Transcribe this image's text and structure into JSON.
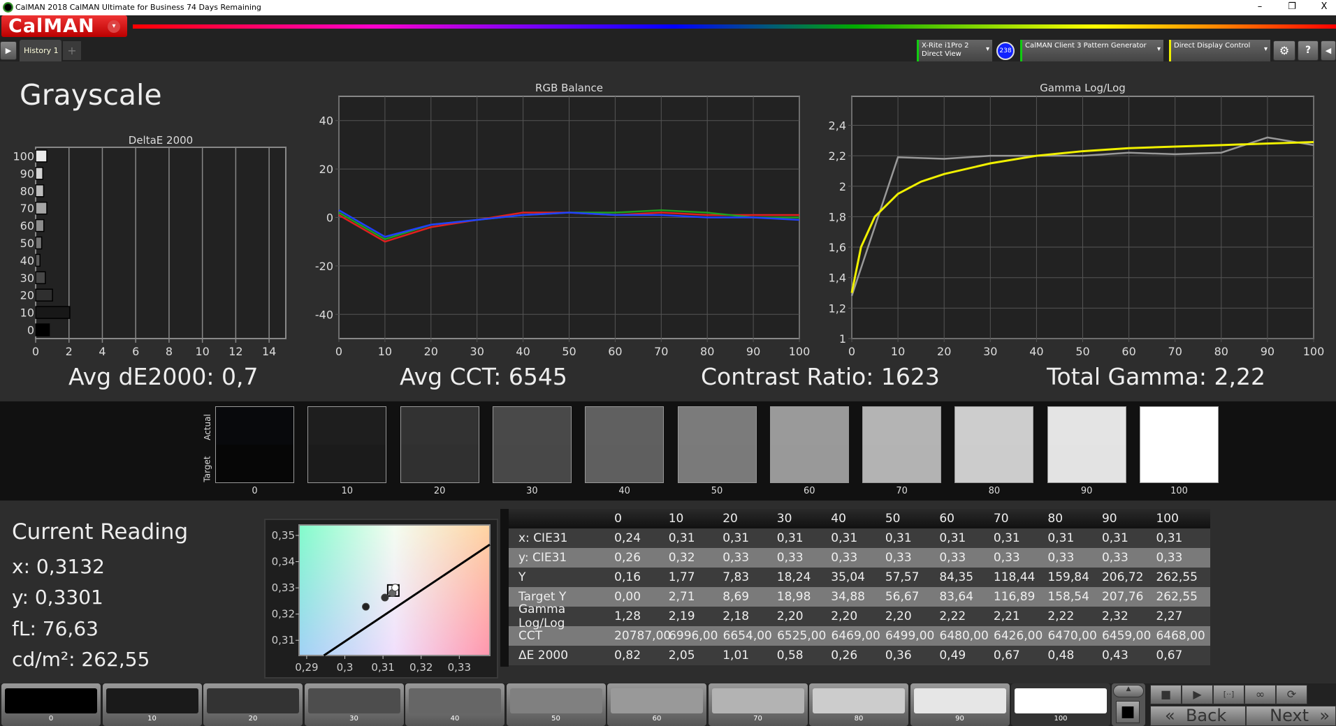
{
  "window": {
    "title": "CalMAN 2018 CalMAN Ultimate for Business 74 Days Remaining",
    "minimize": "–",
    "restore": "❐",
    "close": "X"
  },
  "app": {
    "logo": "CalMAN",
    "logo_caret": "▾"
  },
  "tabs": {
    "play": "▶",
    "history": "History 1",
    "add": "+"
  },
  "devices": {
    "meter_line1": "X-Rite i1Pro 2",
    "meter_line2": "Direct View",
    "meter_badge": "238",
    "pattern_gen": "CalMAN Client 3 Pattern Generator",
    "display_control": "Direct Display Control",
    "caret": "▾",
    "settings": "⚙",
    "help": "?",
    "collapse": "◀"
  },
  "page": {
    "title": "Grayscale"
  },
  "stats": {
    "avg_de": "Avg dE2000: 0,7",
    "avg_cct": "Avg CCT: 6545",
    "contrast": "Contrast Ratio: 1623",
    "gamma": "Total Gamma: 2,22"
  },
  "swatches": {
    "actual_label": "Actual",
    "target_label": "Target",
    "items": [
      {
        "label": "0",
        "actual": "#08090c",
        "target": "#060606"
      },
      {
        "label": "10",
        "actual": "#1e1e1e",
        "target": "#1b1b1b"
      },
      {
        "label": "20",
        "actual": "#323232",
        "target": "#303030"
      },
      {
        "label": "30",
        "actual": "#494949",
        "target": "#484848"
      },
      {
        "label": "40",
        "actual": "#606060",
        "target": "#5f5f5f"
      },
      {
        "label": "50",
        "actual": "#7b7b7b",
        "target": "#7a7a7a"
      },
      {
        "label": "60",
        "actual": "#9a9a9a",
        "target": "#999999"
      },
      {
        "label": "70",
        "actual": "#b4b4b4",
        "target": "#b3b3b3"
      },
      {
        "label": "80",
        "actual": "#cdcdcd",
        "target": "#cccccc"
      },
      {
        "label": "90",
        "actual": "#e4e4e4",
        "target": "#e3e3e3"
      },
      {
        "label": "100",
        "actual": "#ffffff",
        "target": "#ffffff"
      }
    ]
  },
  "current_reading": {
    "title": "Current Reading",
    "x": "x: 0,3132",
    "y": "y: 0,3301",
    "fl": "fL: 76,63",
    "cdm2": "cd/m²: 262,55"
  },
  "table": {
    "columns": [
      "",
      "0",
      "10",
      "20",
      "30",
      "40",
      "50",
      "60",
      "70",
      "80",
      "90",
      "100"
    ],
    "rows": [
      [
        "x: CIE31",
        "0,24",
        "0,31",
        "0,31",
        "0,31",
        "0,31",
        "0,31",
        "0,31",
        "0,31",
        "0,31",
        "0,31",
        "0,31"
      ],
      [
        "y: CIE31",
        "0,26",
        "0,32",
        "0,33",
        "0,33",
        "0,33",
        "0,33",
        "0,33",
        "0,33",
        "0,33",
        "0,33",
        "0,33"
      ],
      [
        "Y",
        "0,16",
        "1,77",
        "7,83",
        "18,24",
        "35,04",
        "57,57",
        "84,35",
        "118,44",
        "159,84",
        "206,72",
        "262,55"
      ],
      [
        "Target Y",
        "0,00",
        "2,71",
        "8,69",
        "18,98",
        "34,88",
        "56,67",
        "83,64",
        "116,89",
        "158,54",
        "207,76",
        "262,55"
      ],
      [
        "Gamma Log/Log",
        "1,28",
        "2,19",
        "2,18",
        "2,20",
        "2,20",
        "2,20",
        "2,22",
        "2,21",
        "2,22",
        "2,32",
        "2,27"
      ],
      [
        "CCT",
        "20787,00",
        "6996,00",
        "6654,00",
        "6525,00",
        "6469,00",
        "6499,00",
        "6480,00",
        "6426,00",
        "6470,00",
        "6459,00",
        "6468,00"
      ],
      [
        "ΔE 2000",
        "0,82",
        "2,05",
        "1,01",
        "0,58",
        "0,26",
        "0,36",
        "0,49",
        "0,67",
        "0,48",
        "0,43",
        "0,67"
      ]
    ]
  },
  "bottom": {
    "swatches": [
      {
        "label": "0",
        "color": "#000000"
      },
      {
        "label": "10",
        "color": "#1a1a1a"
      },
      {
        "label": "20",
        "color": "#333333"
      },
      {
        "label": "30",
        "color": "#4d4d4d"
      },
      {
        "label": "40",
        "color": "#666666"
      },
      {
        "label": "50",
        "color": "#808080"
      },
      {
        "label": "60",
        "color": "#999999"
      },
      {
        "label": "70",
        "color": "#b3b3b3"
      },
      {
        "label": "80",
        "color": "#cccccc"
      },
      {
        "label": "90",
        "color": "#e6e6e6"
      },
      {
        "label": "100",
        "color": "#ffffff"
      }
    ],
    "up": "▲",
    "stop_big": "■",
    "stop": "■",
    "play": "▶",
    "read_continuous": "[··]",
    "loop": "∞",
    "refresh": "⟳",
    "back": "Back",
    "back_icon": "«",
    "next": "Next",
    "next_icon": "»"
  },
  "chart_data": [
    {
      "type": "bar",
      "title": "DeltaE 2000",
      "orientation": "horizontal",
      "categories": [
        "0",
        "10",
        "20",
        "30",
        "40",
        "50",
        "60",
        "70",
        "80",
        "90",
        "100"
      ],
      "values": [
        0.82,
        2.05,
        1.01,
        0.58,
        0.26,
        0.36,
        0.49,
        0.67,
        0.48,
        0.43,
        0.67
      ],
      "xlim": [
        0,
        15
      ],
      "xticks": [
        "0",
        "2",
        "4",
        "6",
        "8",
        "10",
        "12",
        "14"
      ],
      "grid": true
    },
    {
      "type": "line",
      "title": "RGB Balance",
      "x": [
        0,
        10,
        20,
        30,
        40,
        50,
        60,
        70,
        80,
        90,
        100
      ],
      "ylim": [
        -50,
        50
      ],
      "yticks": [
        "40",
        "20",
        "0",
        "-20",
        "-40"
      ],
      "xticks": [
        "0",
        "10",
        "20",
        "30",
        "40",
        "50",
        "60",
        "70",
        "80",
        "90",
        "100"
      ],
      "series": [
        {
          "color": "#e02020",
          "values": [
            1,
            -10,
            -4,
            -1,
            2,
            2,
            1,
            2,
            1,
            1,
            1
          ]
        },
        {
          "color": "#20a020",
          "values": [
            2,
            -9,
            -3,
            -1,
            1,
            2,
            2,
            3,
            2,
            0,
            0
          ]
        },
        {
          "color": "#2040ff",
          "values": [
            3,
            -8,
            -3,
            -1,
            1,
            2,
            1,
            1,
            0,
            0,
            -1
          ]
        }
      ],
      "grid": true
    },
    {
      "type": "line",
      "title": "Gamma Log/Log",
      "ylim": [
        1,
        2.59
      ],
      "yticks": [
        "2,4",
        "2,2",
        "2",
        "1,8",
        "1,6",
        "1,4",
        "1,2",
        "1"
      ],
      "xticks": [
        "0",
        "10",
        "20",
        "30",
        "40",
        "50",
        "60",
        "70",
        "80",
        "90",
        "100"
      ],
      "series": [
        {
          "color": "#999999",
          "x": [
            0,
            10,
            20,
            30,
            40,
            50,
            60,
            70,
            80,
            90,
            100
          ],
          "values": [
            1.28,
            2.19,
            2.18,
            2.2,
            2.2,
            2.2,
            2.22,
            2.21,
            2.22,
            2.32,
            2.27
          ]
        },
        {
          "color": "#f0f000",
          "x": [
            0,
            2,
            5,
            10,
            15,
            20,
            30,
            40,
            50,
            60,
            70,
            80,
            90,
            100
          ],
          "values": [
            1.3,
            1.6,
            1.8,
            1.95,
            2.03,
            2.08,
            2.15,
            2.2,
            2.23,
            2.25,
            2.26,
            2.27,
            2.28,
            2.29
          ]
        }
      ],
      "grid": true
    },
    {
      "type": "scatter",
      "title": "",
      "xlim": [
        0.288,
        0.338
      ],
      "ylim": [
        0.3042,
        0.354
      ],
      "xticks": [
        "0,29",
        "0,3",
        "0,31",
        "0,32",
        "0,33"
      ],
      "yticks": [
        "0,35",
        "0,34",
        "0,33",
        "0,32",
        "0,31"
      ],
      "points": [
        {
          "x": 0.3055,
          "y": 0.3228,
          "color": "#222222"
        },
        {
          "x": 0.3105,
          "y": 0.3263,
          "color": "#333333"
        },
        {
          "x": 0.3125,
          "y": 0.328,
          "color": "#666666"
        },
        {
          "x": 0.3132,
          "y": 0.3301,
          "color": "#ffffff"
        }
      ],
      "target": {
        "x": 0.3127,
        "y": 0.329
      },
      "planckian": [
        [
          0.2945,
          0.3042
        ],
        [
          0.338,
          0.3465
        ]
      ]
    }
  ]
}
